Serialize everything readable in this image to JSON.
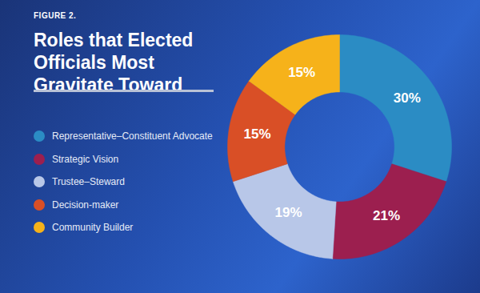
{
  "chart_data": {
    "type": "pie",
    "title": "Roles that Elected Officials Most Gravitate Toward",
    "annotations": [
      "FIGURE 2."
    ],
    "categories": [
      "Representative–Constituent Advocate",
      "Strategic Vision",
      "Trustee–Steward",
      "Decision-maker",
      "Community Builder"
    ],
    "values": [
      30,
      21,
      19,
      15,
      15
    ],
    "value_labels": [
      "30%",
      "21%",
      "19%",
      "15%",
      "15%"
    ],
    "colors": [
      "#2b8cc4",
      "#9c1f4f",
      "#b8c7e8",
      "#d94f26",
      "#f6b21a"
    ],
    "data_labels": true,
    "legend": "left"
  }
}
